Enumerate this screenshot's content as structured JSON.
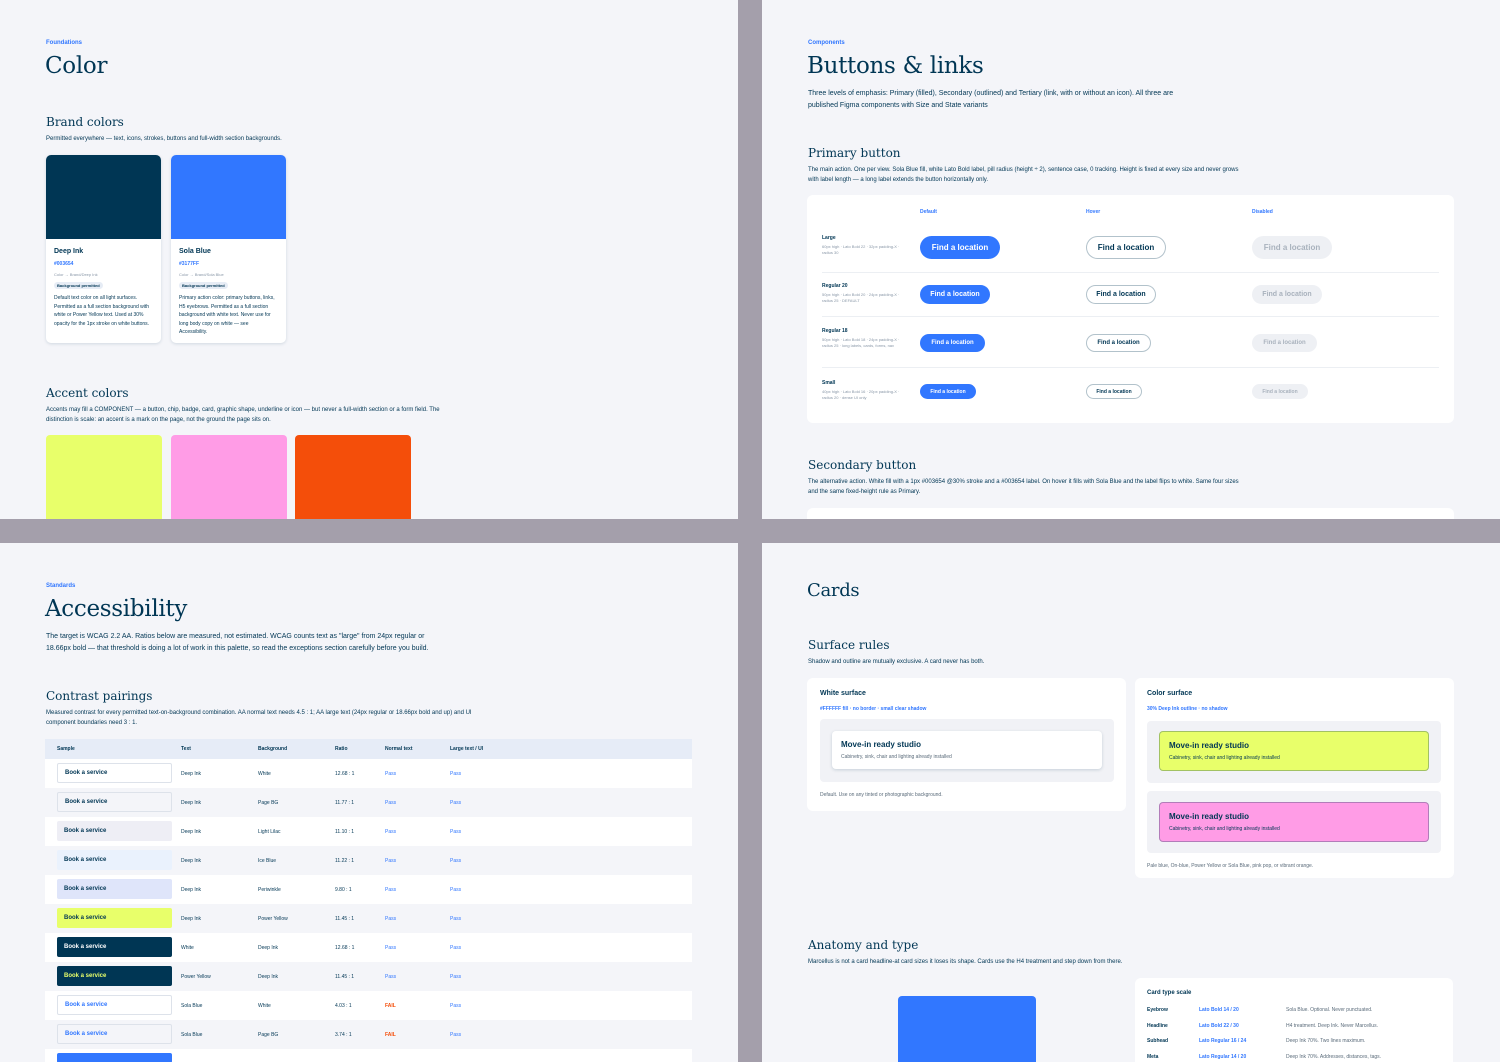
{
  "color": {
    "eyebrow": "Foundations",
    "title": "Color",
    "brand": {
      "title": "Brand colors",
      "desc": "Permitted everywhere — text, icons, strokes, buttons and full-width section backgrounds.",
      "swatches": [
        {
          "name": "Deep Ink",
          "hex": "#003654",
          "token": "Color → Brand/Deep Ink",
          "badge": "Background permitted",
          "desc": "Default text color on all light surfaces. Permitted as a full section background with white or Power Yellow text. Used at 30% opacity for the 1px stroke on white buttons.",
          "color": "#003654"
        },
        {
          "name": "Sola Blue",
          "hex": "#3177FF",
          "token": "Color → Brand/Sola Blue",
          "badge": "Background permitted",
          "desc": "Primary action color: primary buttons, links, H5 eyebrows. Permitted as a full section background with white text. Never use for long body copy on white — see Accessibility.",
          "color": "#3177ff"
        }
      ]
    },
    "accent": {
      "title": "Accent colors",
      "desc1": "Accents may fill a COMPONENT — a button, chip, badge, card, graphic shape, underline or icon — but never a full-width section or a form field. The",
      "desc2": "distinction is scale: an accent is a mark on the page, not the ground the page sits on.",
      "colors": [
        "#e8ff6a",
        "#ff9ce6",
        "#f44e0a"
      ]
    }
  },
  "buttons": {
    "eyebrow": "Components",
    "title": "Buttons & links",
    "desc1": "Three levels of emphasis: Primary (filled), Secondary (outlined) and Tertiary (link, with or without an icon). All three are",
    "desc2": "published Figma components with Size and State variants",
    "primary": {
      "title": "Primary button",
      "desc1": "The main action. One per view. Sola Blue fill, white Lato Bold label, pill radius (height ÷ 2), sentence case, 0 tracking. Height is fixed at every size and never grows",
      "desc2": "with label length — a long label extends the button horizontally only.",
      "cols": [
        "Default",
        "Hover",
        "Disabled"
      ],
      "label": "Find a location",
      "rows": [
        {
          "name": "Large",
          "sub": "60px high · Lato Bold 22 · 32px padding-X · radius 30"
        },
        {
          "name": "Regular 20",
          "sub": "50px high · Lato Bold 20 · 24px padding-X · radius 25 · DEFAULT"
        },
        {
          "name": "Regular 18",
          "sub": "50px high · Lato Bold 18 · 24px padding-X · radius 25 · long labels, cards, forms, nav"
        },
        {
          "name": "Small",
          "sub": "40px high · Lato Bold 16 · 20px padding-X · radius 20 · dense UI only"
        }
      ]
    },
    "secondary": {
      "title": "Secondary button",
      "desc1": "The alternative action. White fill with a 1px #003654 @30% stroke and a #003654 label. On hover it fills with Sola Blue and the label flips to white. Same four sizes",
      "desc2": "and the same fixed-height rule as Primary."
    }
  },
  "accessibility": {
    "eyebrow": "Standards",
    "title": "Accessibility",
    "desc1": "The target is WCAG 2.2 AA. Ratios below are measured, not estimated. WCAG counts text as \"large\" from 24px regular or",
    "desc2": "18.66px bold — that threshold is doing a lot of work in this palette, so read the exceptions section carefully before you build.",
    "pairings": {
      "title": "Contrast pairings",
      "desc1": "Measured contrast for every permitted text-on-background combination. AA normal text needs 4.5 : 1; AA large text (24px regular or 18.66px bold and up) and UI",
      "desc2": "component boundaries need 3 : 1.",
      "headers": [
        "Sample",
        "Text",
        "Background",
        "Ratio",
        "Normal text",
        "Large text / UI"
      ],
      "sample_label": "Book a service",
      "rows": [
        {
          "text": "Deep Ink",
          "bg": "White",
          "ratio": "12.68 : 1",
          "normal": "Pass",
          "large": "Pass",
          "fill": "#ffffff",
          "fg": "#003654"
        },
        {
          "text": "Deep Ink",
          "bg": "Page BG",
          "ratio": "11.77 : 1",
          "normal": "Pass",
          "large": "Pass",
          "fill": "#f4f5f9",
          "fg": "#003654"
        },
        {
          "text": "Deep Ink",
          "bg": "Light Lilac",
          "ratio": "11.10 : 1",
          "normal": "Pass",
          "large": "Pass",
          "fill": "#eeeef5",
          "fg": "#003654"
        },
        {
          "text": "Deep Ink",
          "bg": "Ice Blue",
          "ratio": "11.22 : 1",
          "normal": "Pass",
          "large": "Pass",
          "fill": "#eaf2fd",
          "fg": "#003654"
        },
        {
          "text": "Deep Ink",
          "bg": "Periwinkle",
          "ratio": "9.80 : 1",
          "normal": "Pass",
          "large": "Pass",
          "fill": "#dfe5fa",
          "fg": "#003654"
        },
        {
          "text": "Deep Ink",
          "bg": "Power Yellow",
          "ratio": "11.45 : 1",
          "normal": "Pass",
          "large": "Pass",
          "fill": "#e8ff6a",
          "fg": "#003654"
        },
        {
          "text": "White",
          "bg": "Deep Ink",
          "ratio": "12.68 : 1",
          "normal": "Pass",
          "large": "Pass",
          "fill": "#003654",
          "fg": "#ffffff"
        },
        {
          "text": "Power Yellow",
          "bg": "Deep Ink",
          "ratio": "11.45 : 1",
          "normal": "Pass",
          "large": "Pass",
          "fill": "#003654",
          "fg": "#e8ff6a"
        },
        {
          "text": "Sola Blue",
          "bg": "White",
          "ratio": "4.03 : 1",
          "normal": "FAIL",
          "large": "Pass",
          "fill": "#ffffff",
          "fg": "#3177ff"
        },
        {
          "text": "Sola Blue",
          "bg": "Page BG",
          "ratio": "3.74 : 1",
          "normal": "FAIL",
          "large": "Pass",
          "fill": "#f4f5f9",
          "fg": "#3177ff"
        }
      ]
    }
  },
  "cards": {
    "title": "Cards",
    "surface": {
      "title": "Surface rules",
      "desc": "Shadow and outline are mutually exclusive. A card never has both.",
      "white": {
        "title": "White surface",
        "sub": "#FFFFFF fill · no border · small clear shadow",
        "note": "Default. Use on any tinted or photographic background."
      },
      "color": {
        "title": "Color surface",
        "sub": "30% Deep Ink outline · no shadow",
        "note": "Pale blue, On-blue, Power Yellow or Sola Blue, pink pop, or vibrant orange."
      },
      "card_title": "Move-in ready studio",
      "card_sub": "Cabinetry, sink, chair and lighting already installed"
    },
    "anatomy": {
      "title": "Anatomy and type",
      "desc": "Marcellus is not a card headline-at card sizes it loses its shape. Cards use the H4 treatment and step down from there.",
      "scale_title": "Card type scale",
      "rows": [
        {
          "name": "Eyebrow",
          "spec": "Lato Bold 14 / 20",
          "note": "Sola Blue. Optional. Never punctuated."
        },
        {
          "name": "Headline",
          "spec": "Lato Bold 22 / 30",
          "note": "H4 treatment. Deep Ink. Never Marcellus."
        },
        {
          "name": "Subhead",
          "spec": "Lato Regular 16 / 24",
          "note": "Deep Ink 70%. Two lines maximum."
        },
        {
          "name": "Meta",
          "spec": "Lato Regular 14 / 20",
          "note": "Deep Ink 70%. Addresses, distances, tags."
        }
      ]
    }
  }
}
